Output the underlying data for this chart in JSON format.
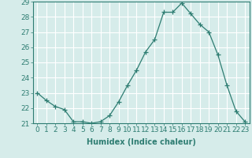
{
  "x": [
    0,
    1,
    2,
    3,
    4,
    5,
    6,
    7,
    8,
    9,
    10,
    11,
    12,
    13,
    14,
    15,
    16,
    17,
    18,
    19,
    20,
    21,
    22,
    23
  ],
  "y": [
    23.0,
    22.5,
    22.1,
    21.9,
    21.1,
    21.1,
    21.0,
    21.1,
    21.5,
    22.4,
    23.5,
    24.5,
    25.7,
    26.5,
    28.3,
    28.3,
    28.9,
    28.2,
    27.5,
    27.0,
    25.5,
    23.5,
    21.8,
    21.1
  ],
  "xlabel": "Humidex (Indice chaleur)",
  "ylim": [
    21,
    29
  ],
  "yticks": [
    21,
    22,
    23,
    24,
    25,
    26,
    27,
    28,
    29
  ],
  "xticks": [
    0,
    1,
    2,
    3,
    4,
    5,
    6,
    7,
    8,
    9,
    10,
    11,
    12,
    13,
    14,
    15,
    16,
    17,
    18,
    19,
    20,
    21,
    22,
    23
  ],
  "line_color": "#2e7d72",
  "bg_color": "#d6ecea",
  "grid_color": "#ffffff",
  "text_color": "#2e7d72",
  "font_size": 6.5
}
